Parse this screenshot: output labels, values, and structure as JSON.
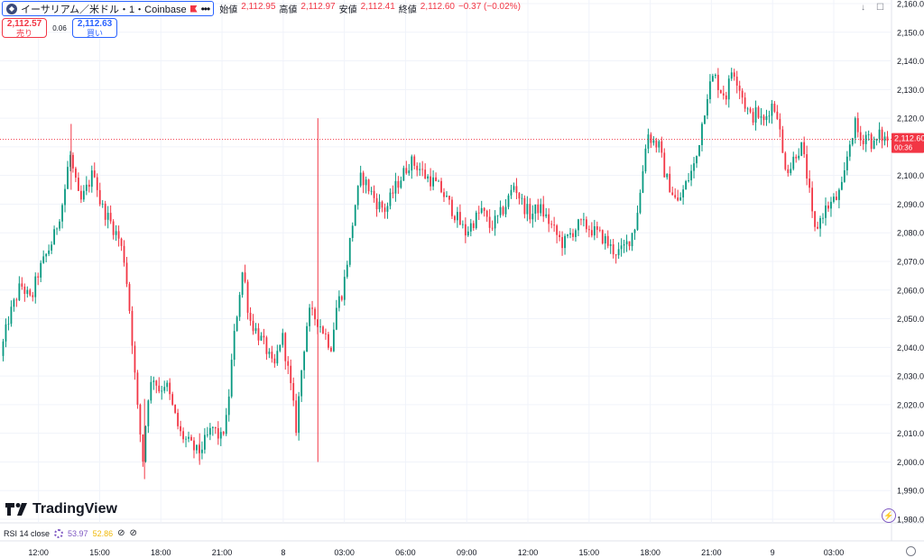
{
  "header": {
    "symbol_title": "イーサリアム／米ドル・1・Coinbase",
    "ohlc": [
      {
        "label": "始値",
        "value": "2,112.95"
      },
      {
        "label": "高値",
        "value": "2,112.97"
      },
      {
        "label": "安値",
        "value": "2,112.41"
      },
      {
        "label": "終値",
        "value": "2,112.60"
      }
    ],
    "change": "−0.37 (−0.02%)"
  },
  "trade": {
    "sell_price": "2,112.57",
    "sell_label": "売り",
    "spread": "0.06",
    "buy_price": "2,112.63",
    "buy_label": "買い"
  },
  "branding": {
    "logo_text": "TradingView"
  },
  "rsi": {
    "label": "RSI 14 close",
    "value1": "53.97",
    "value2": "52.86"
  },
  "price_tag": {
    "price": "2,112.60",
    "countdown": "00:36"
  },
  "colors": {
    "up": "#089981",
    "down": "#f23645",
    "accent": "#2962ff",
    "grid": "#f0f3fa"
  },
  "chart_data": {
    "type": "candlestick",
    "ylim": [
      1980,
      2160
    ],
    "y_ticks": [
      1980,
      1990,
      2000,
      2010,
      2020,
      2030,
      2040,
      2050,
      2060,
      2070,
      2080,
      2090,
      2100,
      2110,
      2120,
      2130,
      2140,
      2150,
      2160
    ],
    "y_tick_labels": [
      "1,980.00",
      "1,990.00",
      "2,000.00",
      "2,010.00",
      "2,020.00",
      "2,030.00",
      "2,040.00",
      "2,050.00",
      "2,060.00",
      "2,070.00",
      "2,080.00",
      "2,090.00",
      "2,100.00",
      "2,110.00",
      "2,120.00",
      "2,130.00",
      "2,140.00",
      "2,150.00",
      "2,160.00"
    ],
    "x_tick_labels": [
      "12:00",
      "15:00",
      "18:00",
      "21:00",
      "8",
      "03:00",
      "06:00",
      "09:00",
      "12:00",
      "15:00",
      "18:00",
      "21:00",
      "9",
      "03:00"
    ],
    "x_tick_hours": [
      12,
      15,
      18,
      21,
      24,
      27,
      30,
      33,
      36,
      39,
      42,
      45,
      48,
      51
    ],
    "x_range_hours": [
      10.2,
      53.7
    ],
    "current_price": 2112.6,
    "path": [
      [
        10.2,
        2037
      ],
      [
        10.6,
        2050
      ],
      [
        11.2,
        2062
      ],
      [
        11.7,
        2056
      ],
      [
        12.0,
        2065
      ],
      [
        12.8,
        2078
      ],
      [
        13.3,
        2092
      ],
      [
        13.6,
        2108
      ],
      [
        13.8,
        2100
      ],
      [
        14.1,
        2090
      ],
      [
        14.4,
        2095
      ],
      [
        14.8,
        2102
      ],
      [
        15.1,
        2090
      ],
      [
        15.5,
        2085
      ],
      [
        16.0,
        2078
      ],
      [
        16.3,
        2070
      ],
      [
        16.6,
        2048
      ],
      [
        16.9,
        2020
      ],
      [
        17.2,
        2000
      ],
      [
        17.4,
        2022
      ],
      [
        17.7,
        2030
      ],
      [
        18.0,
        2025
      ],
      [
        18.3,
        2028
      ],
      [
        18.6,
        2020
      ],
      [
        19.0,
        2010
      ],
      [
        19.5,
        2006
      ],
      [
        19.9,
        2003
      ],
      [
        20.3,
        2008
      ],
      [
        20.6,
        2012
      ],
      [
        21.0,
        2008
      ],
      [
        21.3,
        2015
      ],
      [
        21.6,
        2040
      ],
      [
        21.9,
        2058
      ],
      [
        22.1,
        2068
      ],
      [
        22.4,
        2050
      ],
      [
        22.8,
        2045
      ],
      [
        23.2,
        2040
      ],
      [
        23.6,
        2032
      ],
      [
        24.0,
        2045
      ],
      [
        24.4,
        2028
      ],
      [
        24.7,
        2012
      ],
      [
        25.0,
        2035
      ],
      [
        25.3,
        2052
      ],
      [
        25.7,
        2050
      ],
      [
        26.1,
        2045
      ],
      [
        26.4,
        2040
      ],
      [
        26.7,
        2055
      ],
      [
        27.0,
        2060
      ],
      [
        27.3,
        2075
      ],
      [
        27.6,
        2090
      ],
      [
        27.9,
        2100
      ],
      [
        28.3,
        2095
      ],
      [
        28.7,
        2090
      ],
      [
        29.1,
        2088
      ],
      [
        29.5,
        2095
      ],
      [
        29.9,
        2100
      ],
      [
        30.3,
        2105
      ],
      [
        30.7,
        2103
      ],
      [
        31.0,
        2100
      ],
      [
        31.4,
        2098
      ],
      [
        31.8,
        2095
      ],
      [
        32.2,
        2090
      ],
      [
        32.6,
        2085
      ],
      [
        33.0,
        2080
      ],
      [
        33.4,
        2084
      ],
      [
        33.8,
        2088
      ],
      [
        34.2,
        2082
      ],
      [
        34.6,
        2085
      ],
      [
        35.0,
        2090
      ],
      [
        35.4,
        2097
      ],
      [
        35.8,
        2090
      ],
      [
        36.2,
        2086
      ],
      [
        36.6,
        2089
      ],
      [
        37.0,
        2085
      ],
      [
        37.4,
        2080
      ],
      [
        37.8,
        2076
      ],
      [
        38.2,
        2080
      ],
      [
        38.6,
        2083
      ],
      [
        39.0,
        2082
      ],
      [
        39.4,
        2080
      ],
      [
        39.8,
        2078
      ],
      [
        40.2,
        2074
      ],
      [
        40.6,
        2073
      ],
      [
        41.0,
        2077
      ],
      [
        41.3,
        2082
      ],
      [
        41.6,
        2095
      ],
      [
        41.9,
        2115
      ],
      [
        42.2,
        2112
      ],
      [
        42.5,
        2110
      ],
      [
        42.8,
        2100
      ],
      [
        43.1,
        2095
      ],
      [
        43.4,
        2090
      ],
      [
        43.7,
        2095
      ],
      [
        44.0,
        2100
      ],
      [
        44.3,
        2105
      ],
      [
        44.6,
        2118
      ],
      [
        44.9,
        2130
      ],
      [
        45.2,
        2135
      ],
      [
        45.5,
        2130
      ],
      [
        45.8,
        2128
      ],
      [
        46.1,
        2138
      ],
      [
        46.4,
        2132
      ],
      [
        46.7,
        2125
      ],
      [
        47.0,
        2120
      ],
      [
        47.3,
        2122
      ],
      [
        47.6,
        2118
      ],
      [
        48.0,
        2125
      ],
      [
        48.3,
        2122
      ],
      [
        48.6,
        2105
      ],
      [
        48.9,
        2102
      ],
      [
        49.2,
        2108
      ],
      [
        49.5,
        2110
      ],
      [
        49.8,
        2098
      ],
      [
        50.1,
        2080
      ],
      [
        50.3,
        2083
      ],
      [
        50.6,
        2088
      ],
      [
        50.9,
        2090
      ],
      [
        51.2,
        2092
      ],
      [
        51.5,
        2096
      ],
      [
        51.8,
        2110
      ],
      [
        52.1,
        2118
      ],
      [
        52.4,
        2112
      ],
      [
        52.7,
        2115
      ],
      [
        53.0,
        2110
      ],
      [
        53.3,
        2114
      ],
      [
        53.6,
        2112.6
      ]
    ]
  }
}
